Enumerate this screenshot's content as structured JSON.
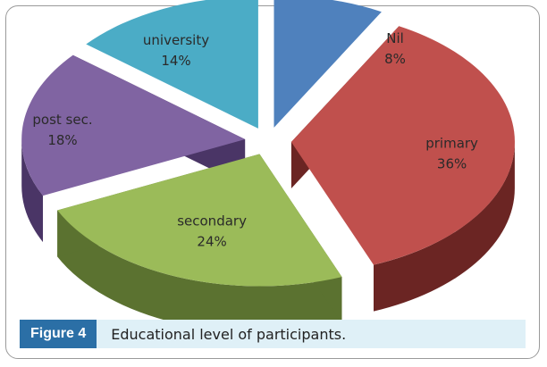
{
  "caption": {
    "figure_label": "Figure 4",
    "text": "Educational level of participants."
  },
  "chart_data": {
    "type": "pie",
    "style": "3d-exploded",
    "slices": [
      {
        "label": "Nil",
        "value": 8,
        "display": "8%",
        "color": "#4f81bd",
        "side": "#2e5379"
      },
      {
        "label": "primary",
        "value": 36,
        "display": "36%",
        "color": "#c0504d",
        "side": "#6b2523"
      },
      {
        "label": "secondary",
        "value": 24,
        "display": "24%",
        "color": "#9bbb59",
        "side": "#5b7230"
      },
      {
        "label": "post sec.",
        "value": 18,
        "display": "18%",
        "color": "#8064a2",
        "side": "#4a3566"
      },
      {
        "label": "university",
        "value": 14,
        "display": "14%",
        "color": "#4bacc6",
        "side": "#1f5a6a"
      }
    ]
  }
}
